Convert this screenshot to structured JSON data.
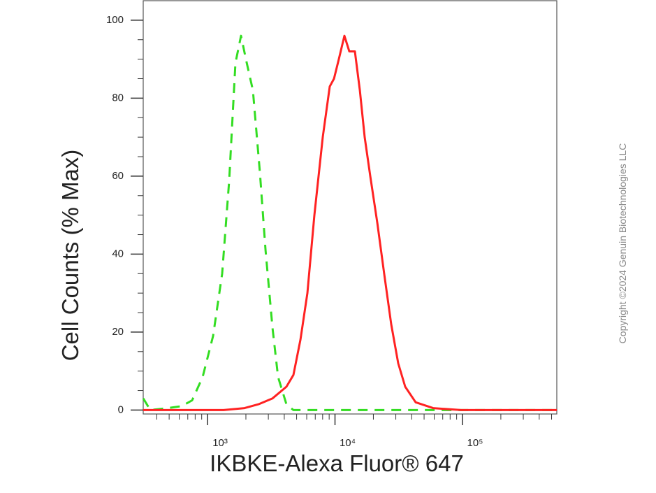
{
  "chart_data": {
    "type": "line",
    "x_label": "IKBKE-Alexa Fluor® 647",
    "y_label": "Cell Counts (% Max)",
    "copyright": "Copyright ©2024 Genuin Biotechnologies LLC",
    "x_log": true,
    "xlim": [
      313,
      549500
    ],
    "ylim": [
      -1,
      105
    ],
    "xticks": [
      {
        "value": 1000,
        "label": "10³"
      },
      {
        "value": 10000,
        "label": "10⁴"
      },
      {
        "value": 100000,
        "label": "10⁵"
      }
    ],
    "x_minor_ticks": [
      400,
      500,
      600,
      700,
      800,
      900,
      2000,
      3000,
      4000,
      5000,
      6000,
      7000,
      8000,
      9000,
      20000,
      30000,
      40000,
      50000,
      60000,
      70000,
      80000,
      90000,
      200000,
      300000,
      400000,
      500000
    ],
    "yticks": [
      0,
      20,
      40,
      60,
      80,
      100
    ],
    "y_minor_ticks": [
      5,
      10,
      15,
      25,
      30,
      35,
      45,
      50,
      55,
      65,
      70,
      75,
      85,
      90,
      95
    ],
    "series": [
      {
        "color": "#33dd22",
        "dashed": true,
        "x": [
          313,
          356,
          487,
          627,
          757,
          916,
          1106,
          1303,
          1479,
          1656,
          1832,
          2001,
          2271,
          2576,
          2851,
          3234,
          3575,
          4159,
          4721,
          12950,
          45740,
          549500
        ],
        "values": [
          3,
          0,
          0.5,
          1,
          2.5,
          8.5,
          19,
          35,
          59,
          89,
          96,
          90,
          82,
          61,
          41,
          21,
          8.5,
          1.5,
          0,
          0,
          0,
          0
        ]
      },
      {
        "color": "#ff2222",
        "dashed": false,
        "x": [
          313,
          1337,
          1951,
          2512,
          3234,
          4159,
          4721,
          5356,
          6077,
          6890,
          8017,
          9100,
          9818,
          10720,
          11860,
          12950,
          14320,
          15660,
          17100,
          18920,
          21470,
          24320,
          27610,
          31330,
          35550,
          42960,
          58880,
          97500,
          549500
        ],
        "values": [
          0,
          0,
          0.5,
          1.5,
          3,
          6,
          9,
          18,
          30,
          50,
          70,
          83,
          85,
          90,
          96,
          92,
          92,
          82,
          70,
          60,
          48,
          35,
          22,
          12,
          6,
          2,
          0.5,
          0,
          0
        ]
      }
    ]
  }
}
